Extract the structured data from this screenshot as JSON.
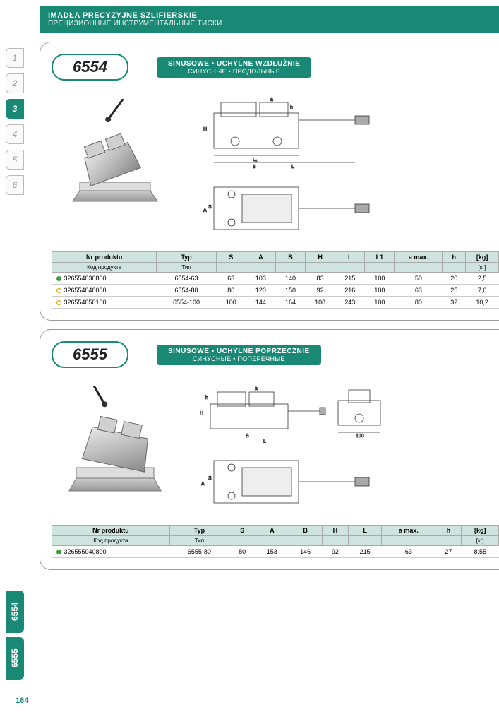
{
  "header": {
    "main": "IMADŁA PRECYZYJNE SZLIFIERSKIE",
    "sub": "ПРЕЦИЗИОННЫЕ ИНСТРУМЕНТАЛЬНЫЕ ТИСКИ"
  },
  "sideTabs": [
    "1",
    "2",
    "3",
    "4",
    "5",
    "6"
  ],
  "activeTab": "3",
  "bottomTabs": [
    "6554",
    "6555"
  ],
  "pageNum": "164",
  "section1": {
    "model": "6554",
    "descLine1": "SINUSOWE • UCHYLNE WZDŁUŻNIE",
    "descLine2": "СИНУСНЫЕ • ПРОДОЛЬНЫЕ",
    "table": {
      "headers1": [
        "Nr produktu",
        "Typ",
        "S",
        "A",
        "B",
        "H",
        "L",
        "L1",
        "a max.",
        "h",
        "[kg]"
      ],
      "headers2": [
        "Код продукта",
        "Тип",
        "",
        "",
        "",
        "",
        "",
        "",
        "",
        "",
        "[кг]"
      ],
      "rows": [
        {
          "dot": "green",
          "code": "326554030800",
          "typ": "6554-63",
          "s": "63",
          "a": "103",
          "b": "140",
          "h": "83",
          "l": "215",
          "l1": "100",
          "amax": "50",
          "hh": "20",
          "kg": "2,5"
        },
        {
          "dot": "yellow",
          "code": "326554040000",
          "typ": "6554-80",
          "s": "80",
          "a": "120",
          "b": "150",
          "h": "92",
          "l": "216",
          "l1": "100",
          "amax": "63",
          "hh": "25",
          "kg": "7,0"
        },
        {
          "dot": "yellow",
          "code": "326554050100",
          "typ": "6554-100",
          "s": "100",
          "a": "144",
          "b": "164",
          "h": "108",
          "l": "243",
          "l1": "100",
          "amax": "80",
          "hh": "32",
          "kg": "10,2"
        }
      ]
    }
  },
  "section2": {
    "model": "6555",
    "descLine1": "SINUSOWE • UCHYLNE POPRZECZNIE",
    "descLine2": "СИНУСНЫЕ • ПОПЕРЕЧНЫЕ",
    "table": {
      "headers1": [
        "Nr produktu",
        "Typ",
        "S",
        "A",
        "B",
        "H",
        "L",
        "a max.",
        "h",
        "[kg]"
      ],
      "headers2": [
        "Код продукта",
        "Тип",
        "",
        "",
        "",
        "",
        "",
        "",
        "",
        "[кг]"
      ],
      "rows": [
        {
          "dot": "green",
          "code": "326555040800",
          "typ": "6555-80",
          "s": "80",
          "a": "153",
          "b": "146",
          "h": "92",
          "l": "215",
          "amax": "63",
          "hh": "27",
          "kg": "8,55"
        }
      ]
    }
  }
}
